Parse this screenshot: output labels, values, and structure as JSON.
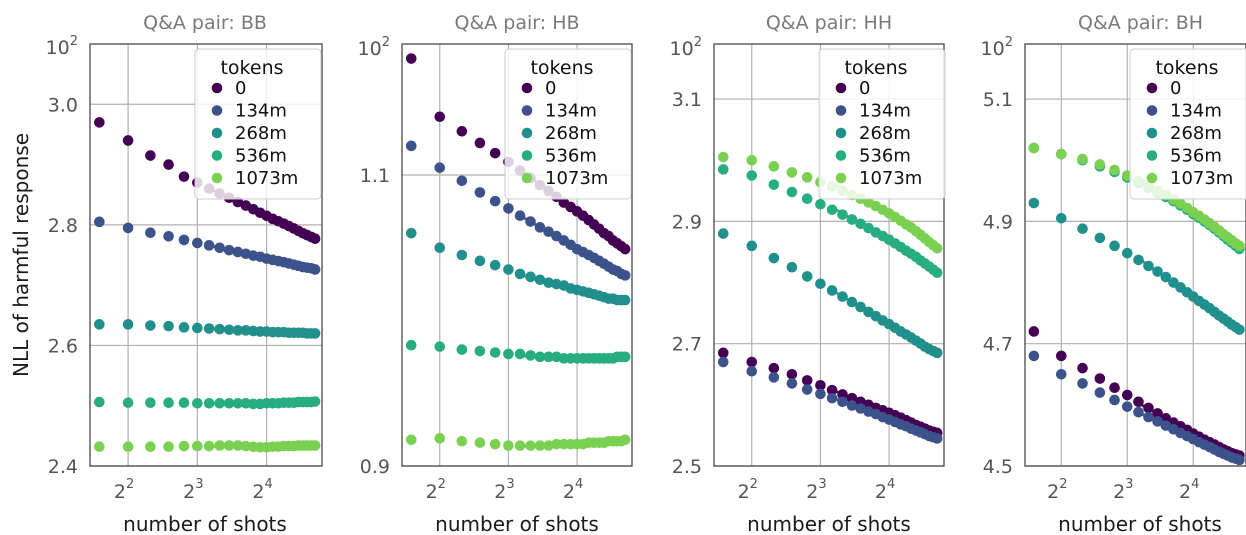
{
  "chart_data": [
    {
      "type": "scatter",
      "title": "Q&A pair: BB",
      "xlabel": "number of shots",
      "ylabel": "NLL of harmful response",
      "x_ticks": [
        "2²",
        "2³",
        "2⁴"
      ],
      "y_ticks": [
        "2.4",
        "2.6",
        "2.8",
        "3.0"
      ],
      "y_top_label": "10²",
      "ylim": [
        2.4,
        3.1
      ],
      "xscale": "log2",
      "x": [
        3,
        4,
        5,
        6,
        7,
        8,
        9,
        10,
        11,
        12,
        13,
        14,
        15,
        16,
        17,
        18,
        19,
        20,
        21,
        22,
        23,
        24,
        25,
        26
      ],
      "legend_title": "tokens",
      "legend_position": "top-right",
      "grid": true,
      "series": [
        {
          "name": "0",
          "color": "#440154",
          "values": [
            2.97,
            2.94,
            2.915,
            2.9,
            2.88,
            2.87,
            2.86,
            2.852,
            2.845,
            2.838,
            2.832,
            2.826,
            2.82,
            2.815,
            2.81,
            2.806,
            2.802,
            2.798,
            2.794,
            2.79,
            2.786,
            2.783,
            2.78,
            2.777
          ]
        },
        {
          "name": "134m",
          "color": "#3b528b",
          "values": [
            2.805,
            2.795,
            2.787,
            2.781,
            2.775,
            2.77,
            2.766,
            2.762,
            2.758,
            2.755,
            2.752,
            2.749,
            2.747,
            2.744,
            2.742,
            2.74,
            2.738,
            2.736,
            2.734,
            2.732,
            2.73,
            2.729,
            2.728,
            2.726
          ]
        },
        {
          "name": "268m",
          "color": "#21908d",
          "values": [
            2.635,
            2.635,
            2.633,
            2.632,
            2.63,
            2.629,
            2.628,
            2.627,
            2.626,
            2.625,
            2.625,
            2.624,
            2.623,
            2.623,
            2.622,
            2.622,
            2.622,
            2.621,
            2.621,
            2.621,
            2.621,
            2.62,
            2.62,
            2.62
          ]
        },
        {
          "name": "536m",
          "color": "#27ad81",
          "values": [
            2.506,
            2.505,
            2.505,
            2.505,
            2.505,
            2.504,
            2.504,
            2.504,
            2.504,
            2.504,
            2.504,
            2.503,
            2.503,
            2.504,
            2.504,
            2.504,
            2.505,
            2.505,
            2.505,
            2.506,
            2.506,
            2.506,
            2.506,
            2.507
          ]
        },
        {
          "name": "1073m",
          "color": "#7ad151",
          "values": [
            2.432,
            2.432,
            2.432,
            2.432,
            2.433,
            2.433,
            2.433,
            2.434,
            2.434,
            2.434,
            2.433,
            2.432,
            2.431,
            2.431,
            2.432,
            2.432,
            2.433,
            2.433,
            2.433,
            2.434,
            2.434,
            2.434,
            2.434,
            2.434
          ]
        }
      ]
    },
    {
      "type": "scatter",
      "title": "Q&A pair: HB",
      "xlabel": "number of shots",
      "ylabel": "",
      "x_ticks": [
        "2²",
        "2³",
        "2⁴"
      ],
      "y_ticks": [
        "0.9",
        "1.1"
      ],
      "y_top_label": "10²",
      "ylim": [
        0.9,
        1.19
      ],
      "xscale": "log2",
      "x": [
        3,
        4,
        5,
        6,
        7,
        8,
        9,
        10,
        11,
        12,
        13,
        14,
        15,
        16,
        17,
        18,
        19,
        20,
        21,
        22,
        23,
        24,
        25,
        26
      ],
      "legend_title": "tokens",
      "legend_position": "top-right",
      "grid": true,
      "series": [
        {
          "name": "0",
          "color": "#440154",
          "values": [
            1.18,
            1.14,
            1.13,
            1.122,
            1.115,
            1.109,
            1.103,
            1.098,
            1.093,
            1.089,
            1.085,
            1.081,
            1.078,
            1.075,
            1.072,
            1.069,
            1.066,
            1.063,
            1.06,
            1.058,
            1.055,
            1.053,
            1.051,
            1.049
          ]
        },
        {
          "name": "134m",
          "color": "#3b528b",
          "values": [
            1.12,
            1.105,
            1.096,
            1.088,
            1.082,
            1.077,
            1.072,
            1.068,
            1.064,
            1.061,
            1.058,
            1.055,
            1.052,
            1.049,
            1.047,
            1.045,
            1.043,
            1.041,
            1.039,
            1.037,
            1.035,
            1.034,
            1.032,
            1.031
          ]
        },
        {
          "name": "268m",
          "color": "#21908d",
          "values": [
            1.06,
            1.05,
            1.045,
            1.041,
            1.038,
            1.035,
            1.032,
            1.03,
            1.028,
            1.026,
            1.025,
            1.024,
            1.022,
            1.021,
            1.02,
            1.019,
            1.018,
            1.017,
            1.016,
            1.015,
            1.015,
            1.014,
            1.014,
            1.014
          ]
        },
        {
          "name": "536m",
          "color": "#27ad81",
          "values": [
            0.983,
            0.982,
            0.98,
            0.979,
            0.978,
            0.977,
            0.977,
            0.976,
            0.975,
            0.975,
            0.975,
            0.974,
            0.974,
            0.974,
            0.974,
            0.974,
            0.974,
            0.974,
            0.974,
            0.974,
            0.974,
            0.975,
            0.975,
            0.975
          ]
        },
        {
          "name": "1073m",
          "color": "#7ad151",
          "values": [
            0.918,
            0.919,
            0.917,
            0.916,
            0.915,
            0.914,
            0.914,
            0.914,
            0.914,
            0.914,
            0.915,
            0.915,
            0.915,
            0.915,
            0.915,
            0.916,
            0.916,
            0.916,
            0.916,
            0.917,
            0.917,
            0.917,
            0.917,
            0.918
          ]
        }
      ]
    },
    {
      "type": "scatter",
      "title": "Q&A pair: HH",
      "xlabel": "number of shots",
      "ylabel": "",
      "x_ticks": [
        "2²",
        "2³",
        "2⁴"
      ],
      "y_ticks": [
        "2.5",
        "2.7",
        "2.9",
        "3.1"
      ],
      "y_top_label": "10²",
      "ylim": [
        2.5,
        3.19
      ],
      "xscale": "log2",
      "x": [
        3,
        4,
        5,
        6,
        7,
        8,
        9,
        10,
        11,
        12,
        13,
        14,
        15,
        16,
        17,
        18,
        19,
        20,
        21,
        22,
        23,
        24,
        25,
        26
      ],
      "legend_title": "tokens",
      "legend_position": "top-right",
      "grid": true,
      "series": [
        {
          "name": "0",
          "color": "#440154",
          "values": [
            2.685,
            2.67,
            2.66,
            2.65,
            2.64,
            2.632,
            2.624,
            2.617,
            2.611,
            2.605,
            2.6,
            2.595,
            2.591,
            2.587,
            2.583,
            2.579,
            2.575,
            2.571,
            2.567,
            2.564,
            2.561,
            2.558,
            2.556,
            2.554
          ]
        },
        {
          "name": "134m",
          "color": "#3b528b",
          "values": [
            2.67,
            2.655,
            2.645,
            2.635,
            2.625,
            2.618,
            2.611,
            2.605,
            2.599,
            2.594,
            2.589,
            2.585,
            2.58,
            2.576,
            2.572,
            2.568,
            2.565,
            2.561,
            2.558,
            2.555,
            2.552,
            2.549,
            2.547,
            2.545
          ]
        },
        {
          "name": "268m",
          "color": "#21908d",
          "values": [
            2.88,
            2.86,
            2.84,
            2.825,
            2.81,
            2.798,
            2.787,
            2.777,
            2.768,
            2.76,
            2.752,
            2.745,
            2.738,
            2.732,
            2.726,
            2.72,
            2.715,
            2.71,
            2.705,
            2.7,
            2.695,
            2.691,
            2.688,
            2.685
          ]
        },
        {
          "name": "536m",
          "color": "#27ad81",
          "values": [
            2.985,
            2.975,
            2.96,
            2.948,
            2.937,
            2.928,
            2.919,
            2.911,
            2.903,
            2.896,
            2.889,
            2.882,
            2.876,
            2.87,
            2.864,
            2.858,
            2.852,
            2.847,
            2.842,
            2.836,
            2.831,
            2.826,
            2.821,
            2.816
          ]
        },
        {
          "name": "1073m",
          "color": "#7ad151",
          "values": [
            3.005,
            3.0,
            2.99,
            2.98,
            2.972,
            2.964,
            2.957,
            2.95,
            2.943,
            2.937,
            2.931,
            2.925,
            2.919,
            2.913,
            2.907,
            2.901,
            2.895,
            2.89,
            2.884,
            2.878,
            2.872,
            2.866,
            2.861,
            2.856
          ]
        }
      ]
    },
    {
      "type": "scatter",
      "title": "Q&A pair: BH",
      "xlabel": "number of shots",
      "ylabel": "",
      "x_ticks": [
        "2²",
        "2³",
        "2⁴"
      ],
      "y_ticks": [
        "4.5",
        "4.7",
        "4.9",
        "5.1"
      ],
      "y_top_label": "10²",
      "ylim": [
        4.5,
        5.19
      ],
      "xscale": "log2",
      "x": [
        3,
        4,
        5,
        6,
        7,
        8,
        9,
        10,
        11,
        12,
        13,
        14,
        15,
        16,
        17,
        18,
        19,
        20,
        21,
        22,
        23,
        24,
        25,
        26
      ],
      "legend_title": "tokens",
      "legend_position": "top-right",
      "grid": true,
      "series": [
        {
          "name": "0",
          "color": "#440154",
          "values": [
            4.72,
            4.68,
            4.66,
            4.643,
            4.628,
            4.616,
            4.605,
            4.595,
            4.586,
            4.578,
            4.571,
            4.565,
            4.559,
            4.553,
            4.548,
            4.543,
            4.539,
            4.535,
            4.531,
            4.527,
            4.524,
            4.521,
            4.519,
            4.517
          ]
        },
        {
          "name": "134m",
          "color": "#3b528b",
          "values": [
            4.68,
            4.65,
            4.635,
            4.62,
            4.608,
            4.597,
            4.588,
            4.58,
            4.573,
            4.566,
            4.56,
            4.554,
            4.549,
            4.544,
            4.539,
            4.535,
            4.531,
            4.527,
            4.523,
            4.52,
            4.517,
            4.514,
            4.512,
            4.51
          ]
        },
        {
          "name": "268m",
          "color": "#21908d",
          "values": [
            4.93,
            4.905,
            4.888,
            4.873,
            4.86,
            4.848,
            4.837,
            4.827,
            4.818,
            4.809,
            4.8,
            4.792,
            4.784,
            4.777,
            4.77,
            4.764,
            4.758,
            4.752,
            4.746,
            4.741,
            4.736,
            4.731,
            4.727,
            4.723
          ]
        },
        {
          "name": "536m",
          "color": "#27ad81",
          "values": [
            5.02,
            5.01,
            5.0,
            4.99,
            4.981,
            4.972,
            4.963,
            4.955,
            4.947,
            4.94,
            4.933,
            4.926,
            4.919,
            4.912,
            4.906,
            4.9,
            4.894,
            4.888,
            4.882,
            4.876,
            4.87,
            4.865,
            4.86,
            4.855
          ]
        },
        {
          "name": "1073m",
          "color": "#7ad151",
          "values": [
            5.02,
            5.01,
            5.002,
            4.993,
            4.984,
            4.975,
            4.966,
            4.958,
            4.95,
            4.943,
            4.936,
            4.929,
            4.922,
            4.915,
            4.909,
            4.903,
            4.897,
            4.891,
            4.885,
            4.879,
            4.874,
            4.869,
            4.864,
            4.86
          ]
        }
      ]
    }
  ]
}
